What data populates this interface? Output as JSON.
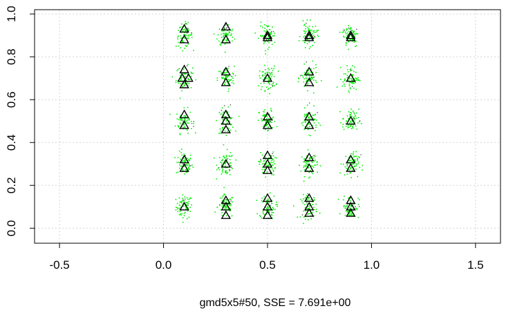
{
  "chart_data": {
    "type": "scatter",
    "caption": "gmd5x5#50,   SSE = 7.691e+00",
    "xlim": [
      -0.62,
      1.62
    ],
    "ylim": [
      -0.07,
      1.02
    ],
    "x_ticks": [
      -0.5,
      0.0,
      0.5,
      1.0,
      1.5
    ],
    "x_tick_labels": [
      "-0.5",
      "0.0",
      "0.5",
      "1.0",
      "1.5"
    ],
    "y_ticks": [
      0.0,
      0.2,
      0.4,
      0.6,
      0.8,
      1.0
    ],
    "y_tick_labels": [
      "0.0",
      "0.2",
      "0.4",
      "0.6",
      "0.8",
      "1.0"
    ],
    "grid": true,
    "cluster_centers_x": [
      0.1,
      0.3,
      0.5,
      0.7,
      0.9
    ],
    "cluster_centers_y": [
      0.1,
      0.3,
      0.5,
      0.7,
      0.9
    ],
    "cluster_spread_sd": 0.022,
    "points_per_cluster": 70,
    "series": [
      {
        "marker": "dot",
        "color": "#00ee00",
        "description_of_shape": "dense clusters around grid of centers"
      },
      {
        "marker": "triangle-open",
        "color": "#000000",
        "points": [
          [
            0.1,
            0.93
          ],
          [
            0.1,
            0.88
          ],
          [
            0.3,
            0.94
          ],
          [
            0.3,
            0.88
          ],
          [
            0.5,
            0.9
          ],
          [
            0.5,
            0.89
          ],
          [
            0.7,
            0.9
          ],
          [
            0.7,
            0.89
          ],
          [
            0.9,
            0.9
          ],
          [
            0.9,
            0.89
          ],
          [
            0.1,
            0.74
          ],
          [
            0.09,
            0.7
          ],
          [
            0.12,
            0.7
          ],
          [
            0.1,
            0.67
          ],
          [
            0.3,
            0.73
          ],
          [
            0.3,
            0.68
          ],
          [
            0.5,
            0.7
          ],
          [
            0.7,
            0.73
          ],
          [
            0.7,
            0.68
          ],
          [
            0.9,
            0.7
          ],
          [
            0.1,
            0.53
          ],
          [
            0.1,
            0.48
          ],
          [
            0.3,
            0.53
          ],
          [
            0.3,
            0.5
          ],
          [
            0.3,
            0.46
          ],
          [
            0.5,
            0.52
          ],
          [
            0.5,
            0.48
          ],
          [
            0.7,
            0.52
          ],
          [
            0.7,
            0.48
          ],
          [
            0.9,
            0.5
          ],
          [
            0.1,
            0.32
          ],
          [
            0.1,
            0.28
          ],
          [
            0.3,
            0.3
          ],
          [
            0.5,
            0.34
          ],
          [
            0.5,
            0.3
          ],
          [
            0.5,
            0.27
          ],
          [
            0.7,
            0.33
          ],
          [
            0.7,
            0.28
          ],
          [
            0.9,
            0.32
          ],
          [
            0.9,
            0.28
          ],
          [
            0.1,
            0.1
          ],
          [
            0.3,
            0.13
          ],
          [
            0.3,
            0.1
          ],
          [
            0.3,
            0.06
          ],
          [
            0.5,
            0.14
          ],
          [
            0.5,
            0.1
          ],
          [
            0.5,
            0.06
          ],
          [
            0.7,
            0.14
          ],
          [
            0.7,
            0.1
          ],
          [
            0.7,
            0.07
          ],
          [
            0.9,
            0.13
          ],
          [
            0.9,
            0.1
          ],
          [
            0.9,
            0.07
          ]
        ]
      }
    ]
  }
}
